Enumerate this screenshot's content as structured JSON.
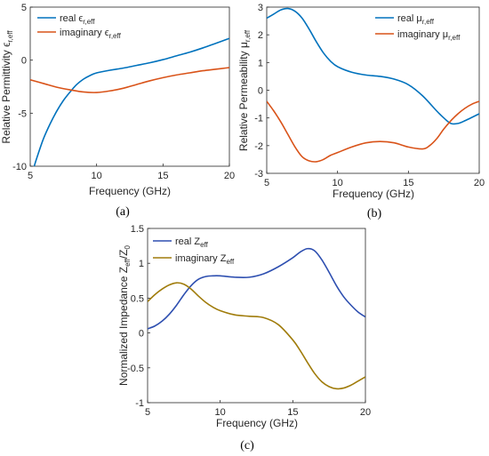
{
  "colors": {
    "blue_curve": "#0072BD",
    "orange_curve": "#D95319",
    "navy_curve": "#2E4FB0",
    "olive_curve": "#A07C0B",
    "axis": "#262626",
    "frame": "#262626"
  },
  "chart_data": [
    {
      "type": "line",
      "panel_label": "(a)",
      "xlabel": "Frequency (GHz)",
      "ylabel": "Relative Permittivity ε_r,eff",
      "xlim": [
        5,
        20
      ],
      "ylim": [
        -10,
        5
      ],
      "xticks": [
        "5",
        "10",
        "15",
        "20"
      ],
      "yticks": [
        "-10",
        "-5",
        "0",
        "5"
      ],
      "legend_position": "top-left",
      "grid": false,
      "series": [
        {
          "name": "real ε_r,eff",
          "color": "#0072BD",
          "x": [
            5.3,
            5.5,
            6,
            6.5,
            7,
            7.5,
            8,
            8.5,
            9,
            9.5,
            10,
            11,
            12,
            13,
            14,
            15,
            16,
            17,
            18,
            19,
            20
          ],
          "y": [
            -10,
            -9.2,
            -7.4,
            -6.0,
            -4.8,
            -3.8,
            -3.0,
            -2.3,
            -1.8,
            -1.45,
            -1.2,
            -0.95,
            -0.75,
            -0.5,
            -0.25,
            0.05,
            0.4,
            0.75,
            1.15,
            1.6,
            2.05
          ]
        },
        {
          "name": "imaginary ε_r,eff",
          "color": "#D95319",
          "x": [
            5,
            6,
            7,
            8,
            9,
            10,
            11,
            12,
            13,
            14,
            15,
            16,
            17,
            18,
            19,
            20
          ],
          "y": [
            -1.85,
            -2.2,
            -2.55,
            -2.8,
            -3.0,
            -3.05,
            -2.9,
            -2.65,
            -2.3,
            -1.95,
            -1.65,
            -1.4,
            -1.2,
            -1.0,
            -0.85,
            -0.7
          ]
        }
      ]
    },
    {
      "type": "line",
      "panel_label": "(b)",
      "xlabel": "Frequency (GHz)",
      "ylabel": "Relative Permeability μ_r,eff",
      "xlim": [
        5,
        20
      ],
      "ylim": [
        -3,
        3
      ],
      "xticks": [
        "5",
        "10",
        "15",
        "20"
      ],
      "yticks": [
        "-3",
        "-2",
        "-1",
        "0",
        "1",
        "2",
        "3"
      ],
      "legend_position": "top-right",
      "grid": false,
      "series": [
        {
          "name": "real μ_r,eff",
          "color": "#0072BD",
          "x": [
            5,
            5.5,
            6,
            6.5,
            7,
            7.5,
            8,
            8.5,
            9,
            9.5,
            10,
            11,
            12,
            13,
            14,
            15,
            16,
            17,
            17.5,
            18,
            18.5,
            19,
            20
          ],
          "y": [
            2.6,
            2.75,
            2.9,
            2.95,
            2.85,
            2.6,
            2.2,
            1.75,
            1.35,
            1.05,
            0.85,
            0.65,
            0.55,
            0.5,
            0.4,
            0.2,
            -0.2,
            -0.75,
            -1.0,
            -1.2,
            -1.2,
            -1.1,
            -0.85
          ]
        },
        {
          "name": "imaginary μ_r,eff",
          "color": "#D95319",
          "x": [
            5,
            5.5,
            6,
            6.5,
            7,
            7.5,
            8,
            8.5,
            9,
            9.5,
            10,
            11,
            12,
            13,
            14,
            15,
            16,
            16.5,
            17,
            17.5,
            18,
            18.5,
            19,
            19.5,
            20
          ],
          "y": [
            -0.4,
            -0.75,
            -1.15,
            -1.6,
            -2.05,
            -2.4,
            -2.55,
            -2.58,
            -2.5,
            -2.35,
            -2.25,
            -2.05,
            -1.9,
            -1.85,
            -1.9,
            -2.05,
            -2.12,
            -2.0,
            -1.75,
            -1.4,
            -1.1,
            -0.85,
            -0.65,
            -0.5,
            -0.4
          ]
        }
      ]
    },
    {
      "type": "line",
      "panel_label": "(c)",
      "xlabel": "Frequency (GHz)",
      "ylabel": "Normalized Impedance Z_eff/Z_0",
      "xlim": [
        5,
        20
      ],
      "ylim": [
        -1,
        1.5
      ],
      "xticks": [
        "5",
        "10",
        "15",
        "20"
      ],
      "yticks": [
        "-1",
        "-0.5",
        "0",
        "0.5",
        "1",
        "1.5"
      ],
      "legend_position": "top-left",
      "grid": false,
      "series": [
        {
          "name": "real Z_eff",
          "color": "#2E4FB0",
          "x": [
            5,
            5.5,
            6,
            6.5,
            7,
            7.5,
            8,
            8.5,
            9,
            9.5,
            10,
            11,
            12,
            13,
            14,
            15,
            15.5,
            16,
            16.5,
            17,
            17.5,
            18,
            18.5,
            19,
            19.5,
            20
          ],
          "y": [
            0.06,
            0.1,
            0.17,
            0.27,
            0.4,
            0.55,
            0.68,
            0.77,
            0.81,
            0.82,
            0.82,
            0.8,
            0.8,
            0.85,
            0.95,
            1.08,
            1.16,
            1.21,
            1.18,
            1.05,
            0.87,
            0.68,
            0.52,
            0.4,
            0.3,
            0.23
          ]
        },
        {
          "name": "imaginary Z_eff",
          "color": "#A07C0B",
          "x": [
            5,
            5.5,
            6,
            6.5,
            7,
            7.5,
            8,
            8.5,
            9,
            9.5,
            10,
            11,
            12,
            13,
            14,
            15,
            15.5,
            16,
            16.5,
            17,
            17.5,
            18,
            18.5,
            19,
            19.5,
            20
          ],
          "y": [
            0.45,
            0.55,
            0.63,
            0.69,
            0.72,
            0.7,
            0.63,
            0.53,
            0.44,
            0.37,
            0.32,
            0.26,
            0.24,
            0.22,
            0.12,
            -0.1,
            -0.25,
            -0.42,
            -0.58,
            -0.7,
            -0.77,
            -0.8,
            -0.79,
            -0.75,
            -0.69,
            -0.63
          ]
        }
      ]
    }
  ]
}
